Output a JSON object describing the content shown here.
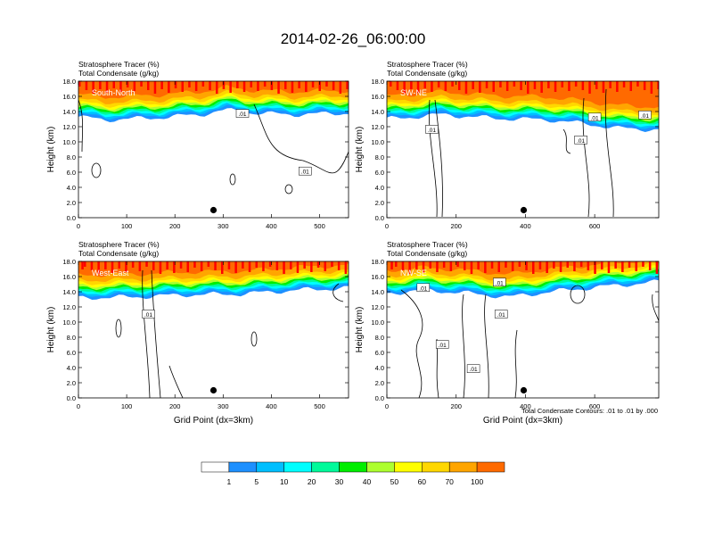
{
  "figure": {
    "title": "2014-02-26_06:00:00",
    "contour_info": "Total Condensate Contours: .01 to .01 by .000"
  },
  "colorbar": {
    "levels": [
      "1",
      "5",
      "10",
      "20",
      "30",
      "40",
      "50",
      "60",
      "70",
      "100"
    ],
    "colors": [
      "#ffffff",
      "#1e90ff",
      "#00bfff",
      "#00ffff",
      "#00fa9a",
      "#00ee00",
      "#adff2f",
      "#ffff00",
      "#ffd700",
      "#ffa500",
      "#ff6a00",
      "#ff0000"
    ]
  },
  "chart_data": [
    {
      "type": "heatmap",
      "panel_label": "South-North",
      "title_line1": "Stratosphere Tracer   (%)",
      "title_line2": "Total Condensate   (g/kg)",
      "ylabel": "Height (km)",
      "xlabel": "",
      "xlim": [
        0,
        560
      ],
      "ylim": [
        0,
        18
      ],
      "xticks": [
        "0",
        "100",
        "200",
        "300",
        "400",
        "500"
      ],
      "yticks": [
        "0.0",
        "2.0",
        "4.0",
        "6.0",
        "8.0",
        "10.0",
        "12.0",
        "14.0",
        "16.0",
        "18.0"
      ],
      "marker_x": 280,
      "marker_y": 1.0,
      "contour_labels": [
        {
          "text": ".01",
          "x": 340,
          "y": 13.7
        },
        {
          "text": ".01",
          "x": 470,
          "y": 6.1
        }
      ]
    },
    {
      "type": "heatmap",
      "panel_label": "SW-NE",
      "title_line1": "Stratosphere Tracer   (%)",
      "title_line2": "Total Condensate   (g/kg)",
      "ylabel": "Height (km)",
      "xlabel": "",
      "xlim": [
        0,
        785
      ],
      "ylim": [
        0,
        18
      ],
      "xticks": [
        "0",
        "200",
        "400",
        "600"
      ],
      "yticks": [
        "0.0",
        "2.0",
        "4.0",
        "6.0",
        "8.0",
        "10.0",
        "12.0",
        "14.0",
        "16.0",
        "18.0"
      ],
      "marker_x": 395,
      "marker_y": 1.0,
      "contour_labels": [
        {
          "text": ".01",
          "x": 130,
          "y": 11.6
        },
        {
          "text": ".01",
          "x": 560,
          "y": 10.2
        },
        {
          "text": ".01",
          "x": 600,
          "y": 13.2
        },
        {
          "text": ".01",
          "x": 745,
          "y": 13.5
        }
      ]
    },
    {
      "type": "heatmap",
      "panel_label": "West-East",
      "title_line1": "Stratosphere Tracer   (%)",
      "title_line2": "Total Condensate   (g/kg)",
      "ylabel": "Height (km)",
      "xlabel": "Grid Point (dx=3km)",
      "xlim": [
        0,
        560
      ],
      "ylim": [
        0,
        18
      ],
      "xticks": [
        "0",
        "100",
        "200",
        "300",
        "400",
        "500"
      ],
      "yticks": [
        "0.0",
        "2.0",
        "4.0",
        "6.0",
        "8.0",
        "10.0",
        "12.0",
        "14.0",
        "16.0",
        "18.0"
      ],
      "marker_x": 280,
      "marker_y": 1.0,
      "contour_labels": [
        {
          "text": ".01",
          "x": 145,
          "y": 11.0
        }
      ]
    },
    {
      "type": "heatmap",
      "panel_label": "NW-SE",
      "title_line1": "Stratosphere Tracer   (%)",
      "title_line2": "Total Condensate   (g/kg)",
      "ylabel": "Height (km)",
      "xlabel": "Grid Point (dx=3km)",
      "xlim": [
        0,
        785
      ],
      "ylim": [
        0,
        18
      ],
      "xticks": [
        "0",
        "200",
        "400",
        "600"
      ],
      "yticks": [
        "0.0",
        "2.0",
        "4.0",
        "6.0",
        "8.0",
        "10.0",
        "12.0",
        "14.0",
        "16.0",
        "18.0"
      ],
      "marker_x": 395,
      "marker_y": 1.0,
      "contour_labels": [
        {
          "text": ".01",
          "x": 105,
          "y": 14.5
        },
        {
          "text": ".01",
          "x": 325,
          "y": 15.2
        },
        {
          "text": ".01",
          "x": 160,
          "y": 7.0
        },
        {
          "text": ".01",
          "x": 250,
          "y": 3.8
        },
        {
          "text": ".01",
          "x": 330,
          "y": 11.0
        }
      ]
    }
  ]
}
